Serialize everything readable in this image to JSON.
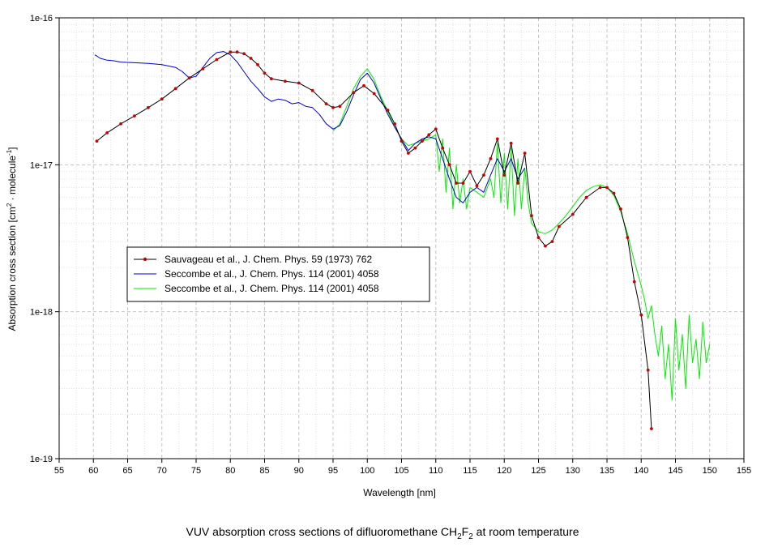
{
  "caption": {
    "before": "VUV absorption cross sections of difluoromethane CH",
    "sub1": "2",
    "mid": "F",
    "sub2": "2",
    "after": " at room temperature"
  },
  "chart_data": {
    "type": "line",
    "xlabel": "Wavelength [nm]",
    "ylabel": {
      "text1": "Absorption cross section [cm",
      "sup1": "2",
      "text2": " · molecule",
      "sup2": "-1",
      "text3": "]"
    },
    "xlim": [
      55,
      155
    ],
    "ylim": [
      1e-19,
      1e-16
    ],
    "yscale": "log",
    "grid": true,
    "legend_position": "center-left",
    "x_ticks": [
      "55",
      "60",
      "65",
      "70",
      "75",
      "80",
      "85",
      "90",
      "95",
      "100",
      "105",
      "110",
      "115",
      "120",
      "125",
      "130",
      "135",
      "140",
      "145",
      "150",
      "155"
    ],
    "y_ticks": [
      {
        "value": 1e-16,
        "label": "1e-16"
      },
      {
        "value": 1e-17,
        "label": "1e-17"
      },
      {
        "value": 1e-18,
        "label": "1e-18"
      },
      {
        "value": 1e-19,
        "label": "1e-19"
      }
    ],
    "series": [
      {
        "name": "Sauvageau et al., J. Chem. Phys. 59 (1973) 762",
        "color": "#000000",
        "marker_color": "#cc0000",
        "markers": true,
        "x": [
          60.5,
          62,
          64,
          66,
          68,
          70,
          72,
          74,
          76,
          78,
          80,
          81,
          82,
          83,
          84,
          85,
          86,
          88,
          90,
          92,
          94,
          95,
          96,
          98,
          99.5,
          101,
          103,
          104,
          105,
          106,
          107,
          108,
          109,
          110,
          111,
          112,
          113,
          114,
          115,
          116,
          117,
          118,
          119,
          120,
          121,
          122,
          123,
          124,
          125,
          126,
          127,
          128,
          130,
          132,
          134,
          135,
          136,
          137,
          138,
          139,
          140,
          141,
          141.5
        ],
        "values": [
          1.45e-17,
          1.65e-17,
          1.9e-17,
          2.15e-17,
          2.45e-17,
          2.8e-17,
          3.3e-17,
          3.9e-17,
          4.5e-17,
          5.2e-17,
          5.85e-17,
          5.85e-17,
          5.7e-17,
          5.3e-17,
          4.8e-17,
          4.2e-17,
          3.85e-17,
          3.7e-17,
          3.6e-17,
          3.2e-17,
          2.6e-17,
          2.45e-17,
          2.5e-17,
          3.1e-17,
          3.45e-17,
          3.05e-17,
          2.35e-17,
          1.9e-17,
          1.45e-17,
          1.2e-17,
          1.3e-17,
          1.45e-17,
          1.6e-17,
          1.75e-17,
          1.3e-17,
          1e-17,
          7.5e-18,
          7.5e-18,
          9e-18,
          7.2e-18,
          8.5e-18,
          1.1e-17,
          1.5e-17,
          8.5e-18,
          1.4e-17,
          7.5e-18,
          1.2e-17,
          4.5e-18,
          3.2e-18,
          2.8e-18,
          3e-18,
          3.8e-18,
          4.6e-18,
          6e-18,
          7e-18,
          7e-18,
          6.4e-18,
          5e-18,
          3.2e-18,
          1.6e-18,
          9.5e-19,
          4e-19,
          1.6e-19
        ]
      },
      {
        "name": "Seccombe et al., J. Chem. Phys. 114 (2001) 4058",
        "color": "#0000cc",
        "markers": false,
        "x": [
          60.2,
          60.5,
          61,
          62,
          63,
          64,
          66,
          68,
          70,
          72,
          73,
          74,
          75,
          76,
          77,
          78,
          79,
          80,
          81,
          82,
          83,
          84,
          85,
          86,
          87,
          88,
          89,
          90,
          91,
          92,
          93,
          94,
          95,
          96,
          97,
          98,
          99,
          100,
          101,
          102,
          103,
          104,
          105,
          106,
          107,
          108,
          109,
          110,
          111,
          112,
          113,
          114,
          115,
          116,
          117,
          118,
          119,
          120,
          121,
          122,
          123
        ],
        "values": [
          5.6e-17,
          5.5e-17,
          5.3e-17,
          5.15e-17,
          5.1e-17,
          5e-17,
          4.95e-17,
          4.9e-17,
          4.8e-17,
          4.6e-17,
          4.3e-17,
          3.9e-17,
          4e-17,
          4.6e-17,
          5.3e-17,
          5.8e-17,
          5.9e-17,
          5.6e-17,
          5e-17,
          4.3e-17,
          3.7e-17,
          3.3e-17,
          2.9e-17,
          2.7e-17,
          2.8e-17,
          2.75e-17,
          2.6e-17,
          2.65e-17,
          2.5e-17,
          2.45e-17,
          2.2e-17,
          1.9e-17,
          1.75e-17,
          1.85e-17,
          2.3e-17,
          3e-17,
          3.8e-17,
          4.2e-17,
          3.6e-17,
          2.8e-17,
          2.2e-17,
          1.8e-17,
          1.5e-17,
          1.25e-17,
          1.4e-17,
          1.5e-17,
          1.55e-17,
          1.5e-17,
          1.1e-17,
          8e-18,
          6e-18,
          5.5e-18,
          6.5e-18,
          7e-18,
          6.5e-18,
          8.5e-18,
          1.1e-17,
          9e-18,
          1.1e-17,
          8e-18,
          9.5e-18
        ]
      },
      {
        "name": "Seccombe et al., J. Chem. Phys. 114 (2001) 4058",
        "color": "#00ee00",
        "markers": false,
        "x": [
          95,
          96,
          97,
          98,
          99,
          100,
          101,
          102,
          103,
          104,
          105,
          106,
          107,
          108,
          109,
          110,
          110.5,
          111,
          111.5,
          112,
          112.5,
          113,
          113.5,
          114,
          114.5,
          115,
          116,
          117,
          118,
          118.5,
          119,
          119.5,
          120,
          120.5,
          121,
          121.5,
          122,
          122.5,
          123,
          123.5,
          124,
          125,
          126,
          127,
          128,
          129,
          130,
          131,
          132,
          133,
          134,
          135,
          136,
          137,
          138,
          139,
          140,
          140.5,
          141,
          141.5,
          142,
          142.5,
          143,
          143.5,
          144,
          144.5,
          145,
          145.5,
          146,
          146.5,
          147,
          147.5,
          148,
          148.5,
          149,
          149.5,
          150
        ],
        "values": [
          1.7e-17,
          1.9e-17,
          2.5e-17,
          3.3e-17,
          4e-17,
          4.5e-17,
          3.8e-17,
          2.9e-17,
          2.3e-17,
          1.8e-17,
          1.5e-17,
          1.35e-17,
          1.4e-17,
          1.45e-17,
          1.5e-17,
          1.6e-17,
          9e-18,
          1.5e-17,
          6.5e-18,
          1.3e-17,
          5e-18,
          1e-17,
          5.5e-18,
          8e-18,
          5e-18,
          7e-18,
          6.5e-18,
          6e-18,
          8e-18,
          6e-18,
          1.4e-17,
          5.5e-18,
          1.2e-17,
          5e-18,
          1.3e-17,
          4.5e-18,
          1.1e-17,
          5e-18,
          9.5e-18,
          5.5e-18,
          4e-18,
          3.5e-18,
          3.4e-18,
          3.6e-18,
          4e-18,
          4.5e-18,
          5.2e-18,
          6e-18,
          6.7e-18,
          7.1e-18,
          7.3e-18,
          7e-18,
          6.2e-18,
          4.8e-18,
          3.4e-18,
          2.2e-18,
          1.5e-18,
          1.2e-18,
          9e-19,
          1.1e-18,
          7e-19,
          5e-19,
          8e-19,
          3.5e-19,
          6e-19,
          2.5e-19,
          9e-19,
          4e-19,
          7e-19,
          3e-19,
          9.5e-19,
          4.5e-19,
          6.5e-19,
          3.5e-19,
          8.5e-19,
          4.5e-19,
          6e-19
        ]
      }
    ]
  }
}
